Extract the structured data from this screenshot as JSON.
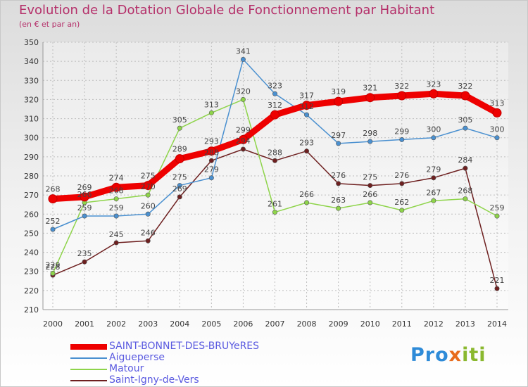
{
  "title": "Evolution de la Dotation Globale de Fonctionnement par Habitant",
  "subtitle": "(en € et par an)",
  "logo": {
    "part1": "Pro",
    "part2": "x",
    "part3": "iti"
  },
  "chart_data": {
    "type": "line",
    "title": "Evolution de la Dotation Globale de Fonctionnement par Habitant",
    "subtitle": "(en € et par an)",
    "x": [
      2000,
      2001,
      2002,
      2003,
      2004,
      2005,
      2006,
      2007,
      2008,
      2009,
      2010,
      2011,
      2012,
      2013,
      2014
    ],
    "x_tick_labels": [
      "2000",
      "2001",
      "2002",
      "2003",
      "2004",
      "2005",
      "2006",
      "2007",
      "2008",
      "2009",
      "2010",
      "2011",
      "2012",
      "2013",
      "2014"
    ],
    "ylim": [
      210,
      350
    ],
    "y_ticks": [
      210,
      220,
      230,
      240,
      250,
      260,
      270,
      280,
      290,
      300,
      310,
      320,
      330,
      340,
      350
    ],
    "y_tick_labels": [
      "210",
      "220",
      "230",
      "240",
      "250",
      "260",
      "270",
      "280",
      "290",
      "300",
      "310",
      "320",
      "330",
      "340",
      "350"
    ],
    "grid": true,
    "legend_position": "bottom-left",
    "series": [
      {
        "name": "SAINT-BONNET-DES-BRUYeRES",
        "color": "#ee0000",
        "values": [
          268,
          269,
          274,
          275,
          289,
          293,
          299,
          312,
          317,
          319,
          321,
          322,
          323,
          322,
          313
        ],
        "labels": [
          "268",
          "269",
          "274",
          "275",
          "289",
          "293",
          "299",
          "312",
          "317",
          "319",
          "321",
          "322",
          "323",
          "322",
          "313"
        ]
      },
      {
        "name": "Aigueperse",
        "color": "#4a90d0",
        "values": [
          252,
          259,
          259,
          260,
          275,
          279,
          341,
          323,
          312,
          297,
          298,
          299,
          300,
          305,
          300
        ],
        "labels": [
          "252",
          "259",
          "259",
          "260",
          "275",
          "279",
          "341",
          "323",
          "312",
          "297",
          "298",
          "299",
          "300",
          "305",
          "300"
        ]
      },
      {
        "name": "Matour",
        "color": "#8ed44a",
        "values": [
          229,
          266,
          268,
          270,
          305,
          313,
          320,
          261,
          266,
          263,
          266,
          262,
          267,
          268,
          259
        ],
        "labels": [
          "229",
          "266",
          "268",
          "270",
          "305",
          "313",
          "320",
          "261",
          "266",
          "263",
          "266",
          "262",
          "267",
          "268",
          "259"
        ]
      },
      {
        "name": "Saint-Igny-de-Vers",
        "color": "#6e2020",
        "values": [
          228,
          235,
          245,
          246,
          269,
          288,
          294,
          288,
          293,
          276,
          275,
          276,
          279,
          284,
          221
        ],
        "labels": [
          "228",
          "235",
          "245",
          "246",
          "269",
          "288",
          "294",
          "288",
          "293",
          "276",
          "275",
          "276",
          "279",
          "284",
          "221"
        ]
      }
    ]
  }
}
